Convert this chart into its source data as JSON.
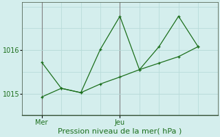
{
  "title": "Pression niveau de la mer( hPa )",
  "ylabel_ticks": [
    1015,
    1016
  ],
  "xtick_labels": [
    "Mer",
    "Jeu"
  ],
  "xtick_positions": [
    1,
    5
  ],
  "ylim": [
    1014.5,
    1017.1
  ],
  "xlim": [
    0,
    10
  ],
  "bg_color": "#d4eeed",
  "grid_color": "#b8dbd9",
  "line_color": "#1a6e1a",
  "line1_x": [
    1,
    2,
    3,
    4,
    5,
    6,
    7,
    8,
    9
  ],
  "line1_y": [
    1015.72,
    1015.12,
    1015.02,
    1016.02,
    1016.78,
    1015.55,
    1016.08,
    1016.78,
    1016.08
  ],
  "line2_x": [
    1,
    2,
    3,
    4,
    5,
    6,
    7,
    8,
    9
  ],
  "line2_y": [
    1014.92,
    1015.12,
    1015.02,
    1015.22,
    1015.38,
    1015.55,
    1015.7,
    1015.85,
    1016.08
  ],
  "line1_lw": 0.9,
  "line2_lw": 0.9,
  "marker_size": 3.5,
  "marker_lw": 0.9,
  "title_fontsize": 8,
  "tick_fontsize": 7,
  "n_vgrid": 10,
  "n_hgrid": 5
}
